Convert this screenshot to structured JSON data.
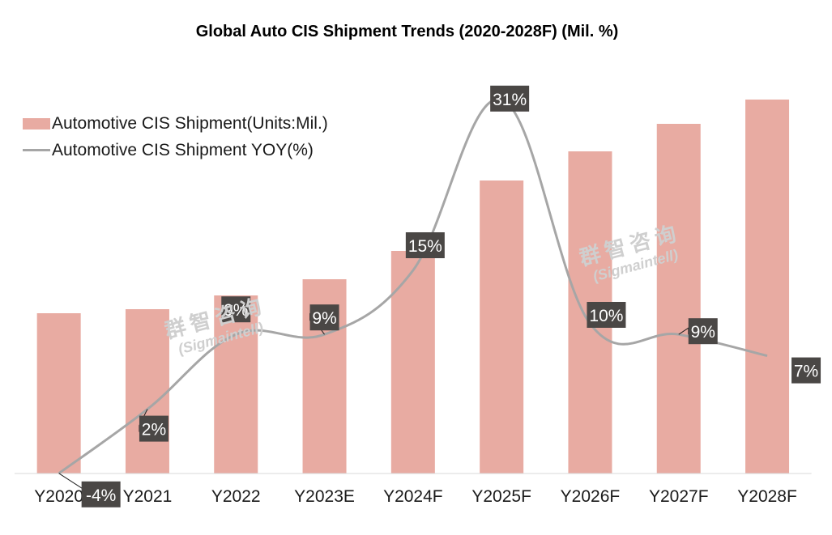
{
  "chart_data": {
    "type": "bar",
    "title": "Global Auto CIS Shipment Trends (2020-2028F) (Mil. %)",
    "categories": [
      "Y2020",
      "Y2021",
      "Y2022",
      "Y2023E",
      "Y2024F",
      "Y2025F",
      "Y2026F",
      "Y2027F",
      "Y2028F"
    ],
    "series": [
      {
        "name": "Automotive CIS Shipment(Units:Mil.)",
        "type": "bar",
        "color": "#e8aba2",
        "values": [
          198,
          203,
          220,
          240,
          275,
          362,
          398,
          432,
          462
        ]
      },
      {
        "name": "Automotive CIS Shipment YOY(%)",
        "type": "line",
        "color": "#a6a6a6",
        "values": [
          -4,
          2,
          9,
          9,
          15,
          31,
          10,
          9,
          7
        ],
        "labels": [
          "-4%",
          "2%",
          "9%",
          "9%",
          "15%",
          "31%",
          "10%",
          "9%",
          "7%"
        ]
      }
    ],
    "legend": "top-left",
    "grid": false
  },
  "watermark": {
    "cn": "群智咨询",
    "en": "(Sigmaintell)"
  }
}
